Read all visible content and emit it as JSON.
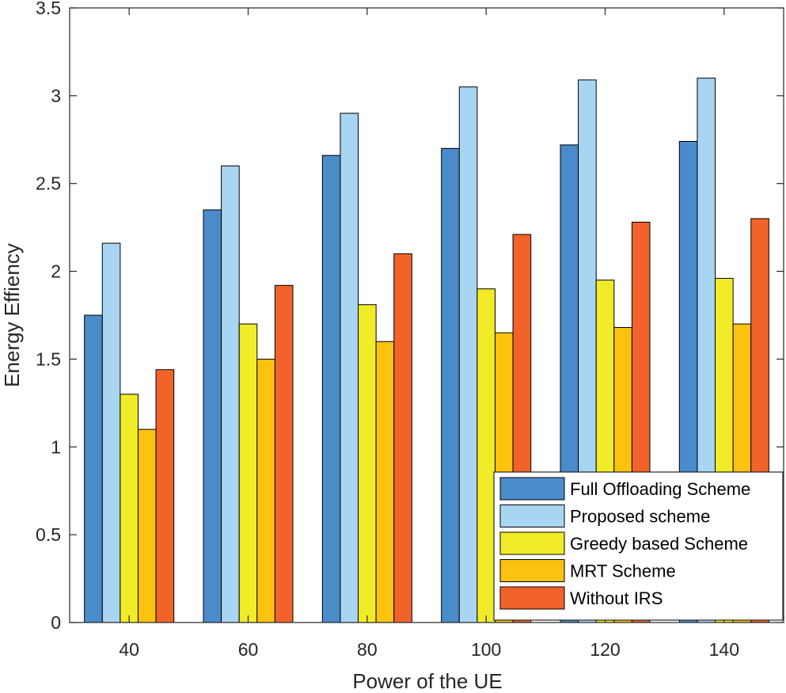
{
  "chart_data": {
    "type": "bar",
    "categories": [
      "40",
      "60",
      "80",
      "100",
      "120",
      "140"
    ],
    "series": [
      {
        "name": "Full Offloading Scheme",
        "color": "#4a8bc9",
        "values": [
          1.75,
          2.35,
          2.66,
          2.7,
          2.72,
          2.74
        ]
      },
      {
        "name": "Proposed scheme",
        "color": "#a8d5f2",
        "values": [
          2.16,
          2.6,
          2.9,
          3.05,
          3.09,
          3.1
        ]
      },
      {
        "name": "Greedy based Scheme",
        "color": "#f2eb28",
        "values": [
          1.3,
          1.7,
          1.81,
          1.9,
          1.95,
          1.96
        ]
      },
      {
        "name": "MRT Scheme",
        "color": "#fbc20f",
        "values": [
          1.1,
          1.5,
          1.6,
          1.65,
          1.68,
          1.7
        ]
      },
      {
        "name": "Without IRS",
        "color": "#f1632a",
        "values": [
          1.44,
          1.92,
          2.1,
          2.21,
          2.28,
          2.3
        ]
      }
    ],
    "xlabel": "Power of the UE",
    "ylabel": "Energy Effiency",
    "ylim": [
      0,
      3.5
    ],
    "yticks": [
      "0",
      "0.5",
      "1",
      "1.5",
      "2",
      "2.5",
      "3",
      "3.5"
    ],
    "grid": false,
    "legend_position": "bottom-right"
  }
}
